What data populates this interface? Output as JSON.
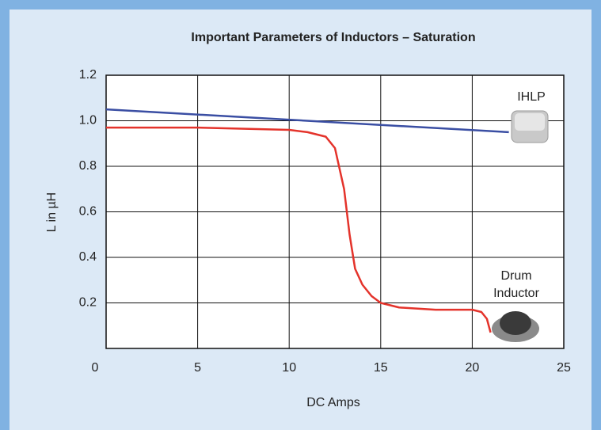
{
  "chart_data": {
    "type": "line",
    "title": "Important Parameters of Inductors – Saturation",
    "x_label": "DC Amps",
    "y_label": "L in µH",
    "annotations": [
      "IHLP",
      "Drum Inductor"
    ],
    "xlim": [
      0,
      25
    ],
    "xticks": [
      0,
      5,
      10,
      15,
      20,
      25
    ],
    "ylim": [
      0,
      1.2
    ],
    "yticks": [
      0.2,
      0.4,
      0.6,
      {
        "value": 0.8,
        "label": "0.8"
      },
      {
        "value": 1,
        "label": "1.0"
      },
      1.2
    ],
    "grid": true,
    "series": [
      {
        "color": "#3a4ea3",
        "x": [
          0,
          22
        ],
        "values": [
          1.05,
          0.95
        ]
      },
      {
        "color": "#e4332b",
        "x": [
          0,
          5,
          10,
          11,
          12,
          12.5,
          13,
          13.3,
          13.6,
          14,
          14.5,
          15,
          16,
          18,
          20,
          20.5,
          20.8,
          21
        ],
        "values": [
          0.97,
          0.97,
          0.96,
          0.95,
          0.93,
          0.88,
          0.7,
          0.5,
          0.35,
          0.28,
          0.23,
          0.2,
          0.18,
          0.17,
          0.17,
          0.16,
          0.13,
          0.07
        ]
      }
    ]
  }
}
